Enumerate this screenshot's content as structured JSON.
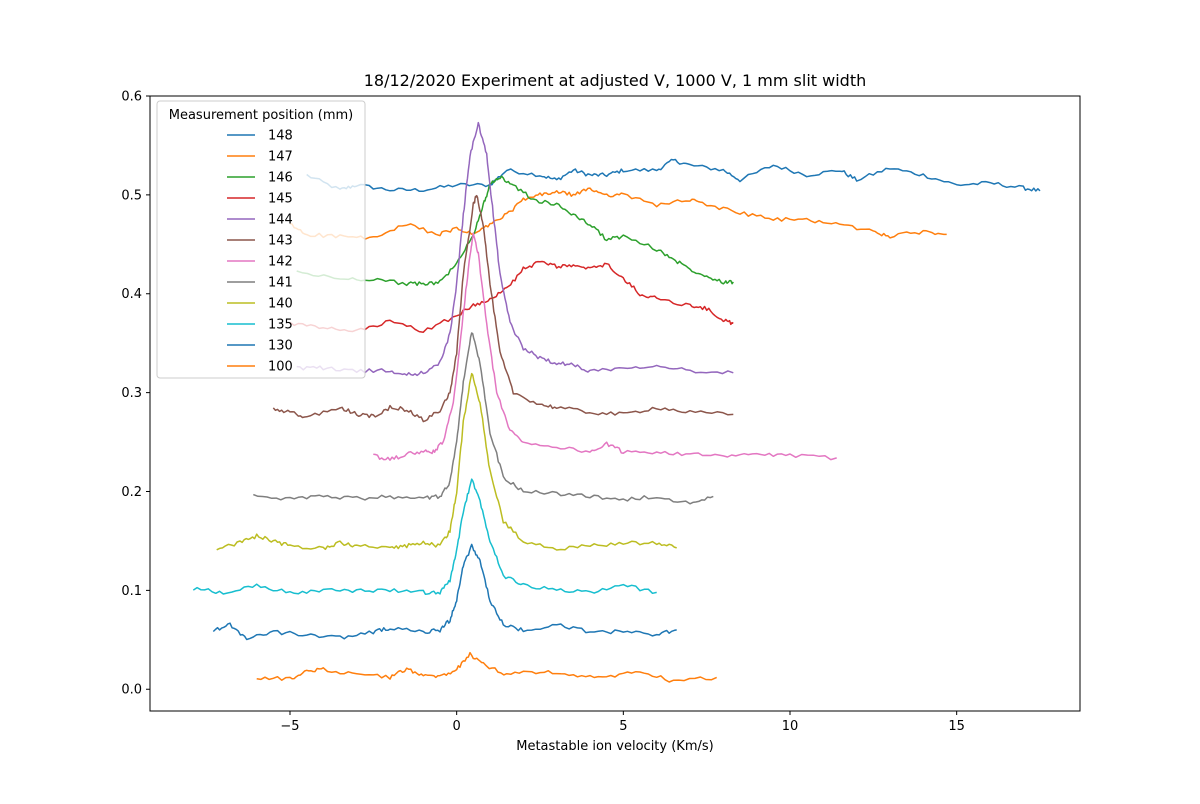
{
  "chart_data": {
    "type": "line",
    "title": "18/12/2020 Experiment at adjusted V, 1000 V, 1 mm slit width",
    "xlabel": "Metastable ion velocity (Km/s)",
    "ylabel": "",
    "xlim": [
      -9.2,
      18.7
    ],
    "ylim": [
      -0.022,
      0.6
    ],
    "x_ticks": [
      -5,
      0,
      5,
      10,
      15
    ],
    "x_tick_labels": [
      "−5",
      "0",
      "5",
      "10",
      "15"
    ],
    "y_ticks": [
      0.0,
      0.1,
      0.2,
      0.3,
      0.4,
      0.5,
      0.6
    ],
    "y_tick_labels": [
      "0.0",
      "0.1",
      "0.2",
      "0.3",
      "0.4",
      "0.5",
      "0.6"
    ],
    "grid": false,
    "legend": {
      "title": "Measurement position (mm)",
      "placement": "upper-left"
    },
    "series": [
      {
        "name": "148",
        "color": "#1f77b4",
        "points": [
          [
            -4.5,
            0.52
          ],
          [
            -3.5,
            0.505
          ],
          [
            -3,
            0.51
          ],
          [
            -2,
            0.505
          ],
          [
            -1,
            0.505
          ],
          [
            0,
            0.51
          ],
          [
            1,
            0.51
          ],
          [
            1.5,
            0.525
          ],
          [
            2.5,
            0.52
          ],
          [
            3,
            0.515
          ],
          [
            3.5,
            0.525
          ],
          [
            4,
            0.52
          ],
          [
            4.5,
            0.52
          ],
          [
            5,
            0.525
          ],
          [
            6,
            0.525
          ],
          [
            6.5,
            0.535
          ],
          [
            7,
            0.53
          ],
          [
            8,
            0.525
          ],
          [
            8.5,
            0.515
          ],
          [
            9.5,
            0.53
          ],
          [
            10.5,
            0.52
          ],
          [
            11.5,
            0.525
          ],
          [
            12,
            0.515
          ],
          [
            13,
            0.527
          ],
          [
            14,
            0.52
          ],
          [
            15,
            0.51
          ],
          [
            16,
            0.512
          ],
          [
            17,
            0.507
          ],
          [
            17.5,
            0.504
          ]
        ]
      },
      {
        "name": "147",
        "color": "#ff7f0e",
        "points": [
          [
            -5,
            0.47
          ],
          [
            -4.5,
            0.46
          ],
          [
            -3.5,
            0.458
          ],
          [
            -2.5,
            0.456
          ],
          [
            -1.5,
            0.47
          ],
          [
            -0.5,
            0.46
          ],
          [
            0,
            0.466
          ],
          [
            0.5,
            0.46
          ],
          [
            1,
            0.47
          ],
          [
            1.5,
            0.48
          ],
          [
            2,
            0.495
          ],
          [
            2.5,
            0.5
          ],
          [
            3,
            0.503
          ],
          [
            3.5,
            0.5
          ],
          [
            4,
            0.506
          ],
          [
            4.5,
            0.5
          ],
          [
            5,
            0.5
          ],
          [
            6,
            0.49
          ],
          [
            7,
            0.495
          ],
          [
            7.5,
            0.49
          ],
          [
            8.5,
            0.482
          ],
          [
            9.5,
            0.475
          ],
          [
            10.5,
            0.475
          ],
          [
            11.5,
            0.47
          ],
          [
            12.5,
            0.463
          ],
          [
            13,
            0.458
          ],
          [
            14,
            0.463
          ],
          [
            14.7,
            0.46
          ]
        ]
      },
      {
        "name": "146",
        "color": "#2ca02c",
        "points": [
          [
            -4.8,
            0.422
          ],
          [
            -3.5,
            0.415
          ],
          [
            -2.5,
            0.415
          ],
          [
            -1.5,
            0.41
          ],
          [
            -1,
            0.41
          ],
          [
            -0.5,
            0.412
          ],
          [
            0,
            0.43
          ],
          [
            0.5,
            0.46
          ],
          [
            0.8,
            0.49
          ],
          [
            1,
            0.51
          ],
          [
            1.3,
            0.518
          ],
          [
            1.7,
            0.51
          ],
          [
            2.3,
            0.495
          ],
          [
            3,
            0.49
          ],
          [
            3.5,
            0.48
          ],
          [
            4,
            0.47
          ],
          [
            4.5,
            0.455
          ],
          [
            5,
            0.458
          ],
          [
            6,
            0.445
          ],
          [
            6.5,
            0.435
          ],
          [
            7,
            0.425
          ],
          [
            7.5,
            0.418
          ],
          [
            8,
            0.412
          ],
          [
            8.3,
            0.412
          ]
        ]
      },
      {
        "name": "145",
        "color": "#d62728",
        "points": [
          [
            -5,
            0.37
          ],
          [
            -4,
            0.365
          ],
          [
            -3,
            0.362
          ],
          [
            -2,
            0.372
          ],
          [
            -1,
            0.362
          ],
          [
            0,
            0.378
          ],
          [
            0.5,
            0.388
          ],
          [
            1,
            0.395
          ],
          [
            1.5,
            0.405
          ],
          [
            2,
            0.425
          ],
          [
            2.5,
            0.432
          ],
          [
            3,
            0.428
          ],
          [
            3.5,
            0.428
          ],
          [
            4,
            0.425
          ],
          [
            4.5,
            0.43
          ],
          [
            5,
            0.415
          ],
          [
            5.5,
            0.4
          ],
          [
            6,
            0.395
          ],
          [
            7,
            0.388
          ],
          [
            7.5,
            0.385
          ],
          [
            8,
            0.373
          ],
          [
            8.3,
            0.37
          ]
        ]
      },
      {
        "name": "144",
        "color": "#9467bd",
        "points": [
          [
            -4.8,
            0.325
          ],
          [
            -4,
            0.325
          ],
          [
            -3,
            0.322
          ],
          [
            -2,
            0.322
          ],
          [
            -1.5,
            0.318
          ],
          [
            -1,
            0.32
          ],
          [
            -0.5,
            0.33
          ],
          [
            -0.2,
            0.36
          ],
          [
            0,
            0.41
          ],
          [
            0.2,
            0.48
          ],
          [
            0.4,
            0.54
          ],
          [
            0.65,
            0.572
          ],
          [
            0.9,
            0.54
          ],
          [
            1.1,
            0.48
          ],
          [
            1.3,
            0.42
          ],
          [
            1.6,
            0.37
          ],
          [
            2,
            0.345
          ],
          [
            2.5,
            0.335
          ],
          [
            3,
            0.33
          ],
          [
            3.5,
            0.328
          ],
          [
            4,
            0.322
          ],
          [
            5,
            0.325
          ],
          [
            6,
            0.328
          ],
          [
            7,
            0.322
          ],
          [
            8.3,
            0.32
          ]
        ]
      },
      {
        "name": "143",
        "color": "#8c564b",
        "points": [
          [
            -5.5,
            0.283
          ],
          [
            -5,
            0.28
          ],
          [
            -4.5,
            0.275
          ],
          [
            -3.5,
            0.285
          ],
          [
            -3,
            0.278
          ],
          [
            -2.5,
            0.276
          ],
          [
            -2,
            0.285
          ],
          [
            -1.5,
            0.283
          ],
          [
            -1,
            0.272
          ],
          [
            -0.5,
            0.282
          ],
          [
            -0.2,
            0.3
          ],
          [
            0,
            0.34
          ],
          [
            0.2,
            0.42
          ],
          [
            0.5,
            0.49
          ],
          [
            0.6,
            0.5
          ],
          [
            0.8,
            0.47
          ],
          [
            1,
            0.41
          ],
          [
            1.3,
            0.34
          ],
          [
            1.7,
            0.3
          ],
          [
            2.5,
            0.288
          ],
          [
            3,
            0.285
          ],
          [
            4,
            0.28
          ],
          [
            5,
            0.278
          ],
          [
            6,
            0.285
          ],
          [
            7,
            0.28
          ],
          [
            8.3,
            0.278
          ]
        ]
      },
      {
        "name": "142",
        "color": "#e377c2",
        "points": [
          [
            -2.5,
            0.236
          ],
          [
            -2,
            0.232
          ],
          [
            -1.5,
            0.238
          ],
          [
            -1,
            0.24
          ],
          [
            -0.7,
            0.24
          ],
          [
            -0.4,
            0.25
          ],
          [
            -0.1,
            0.29
          ],
          [
            0.2,
            0.38
          ],
          [
            0.4,
            0.44
          ],
          [
            0.5,
            0.46
          ],
          [
            0.65,
            0.44
          ],
          [
            0.9,
            0.37
          ],
          [
            1.2,
            0.3
          ],
          [
            1.6,
            0.262
          ],
          [
            2,
            0.25
          ],
          [
            3,
            0.245
          ],
          [
            4,
            0.24
          ],
          [
            4.5,
            0.248
          ],
          [
            5,
            0.24
          ],
          [
            6,
            0.24
          ],
          [
            7,
            0.238
          ],
          [
            8,
            0.235
          ],
          [
            9,
            0.238
          ],
          [
            10,
            0.236
          ],
          [
            11.4,
            0.234
          ]
        ]
      },
      {
        "name": "141",
        "color": "#7f7f7f",
        "points": [
          [
            -6.1,
            0.195
          ],
          [
            -5,
            0.193
          ],
          [
            -4,
            0.195
          ],
          [
            -3,
            0.193
          ],
          [
            -2,
            0.195
          ],
          [
            -1,
            0.193
          ],
          [
            -0.5,
            0.195
          ],
          [
            -0.2,
            0.21
          ],
          [
            0,
            0.25
          ],
          [
            0.2,
            0.31
          ],
          [
            0.45,
            0.362
          ],
          [
            0.7,
            0.33
          ],
          [
            1,
            0.26
          ],
          [
            1.4,
            0.215
          ],
          [
            2,
            0.2
          ],
          [
            3,
            0.198
          ],
          [
            4,
            0.195
          ],
          [
            5,
            0.192
          ],
          [
            6,
            0.195
          ],
          [
            7,
            0.188
          ],
          [
            7.7,
            0.195
          ]
        ]
      },
      {
        "name": "140",
        "color": "#bcbd22",
        "points": [
          [
            -7.2,
            0.143
          ],
          [
            -6.5,
            0.148
          ],
          [
            -6,
            0.155
          ],
          [
            -5.5,
            0.15
          ],
          [
            -5,
            0.145
          ],
          [
            -4,
            0.142
          ],
          [
            -3.5,
            0.148
          ],
          [
            -3,
            0.145
          ],
          [
            -2,
            0.142
          ],
          [
            -1.5,
            0.145
          ],
          [
            -1,
            0.148
          ],
          [
            -0.5,
            0.145
          ],
          [
            -0.2,
            0.16
          ],
          [
            0,
            0.2
          ],
          [
            0.2,
            0.27
          ],
          [
            0.45,
            0.32
          ],
          [
            0.7,
            0.29
          ],
          [
            1,
            0.22
          ],
          [
            1.4,
            0.17
          ],
          [
            2,
            0.15
          ],
          [
            3,
            0.142
          ],
          [
            4,
            0.145
          ],
          [
            5,
            0.148
          ],
          [
            6,
            0.148
          ],
          [
            6.6,
            0.143
          ]
        ]
      },
      {
        "name": "135",
        "color": "#17becf",
        "points": [
          [
            -7.9,
            0.102
          ],
          [
            -7,
            0.098
          ],
          [
            -6,
            0.105
          ],
          [
            -5,
            0.098
          ],
          [
            -4,
            0.1
          ],
          [
            -3,
            0.1
          ],
          [
            -2,
            0.1
          ],
          [
            -1,
            0.098
          ],
          [
            -0.5,
            0.098
          ],
          [
            -0.2,
            0.11
          ],
          [
            0,
            0.14
          ],
          [
            0.2,
            0.18
          ],
          [
            0.45,
            0.212
          ],
          [
            0.7,
            0.19
          ],
          [
            1,
            0.15
          ],
          [
            1.4,
            0.115
          ],
          [
            2,
            0.105
          ],
          [
            3,
            0.1
          ],
          [
            4,
            0.098
          ],
          [
            5,
            0.105
          ],
          [
            6,
            0.098
          ]
        ]
      },
      {
        "name": "130",
        "color": "#1f77b4",
        "points": [
          [
            -7.3,
            0.06
          ],
          [
            -6.8,
            0.065
          ],
          [
            -6.3,
            0.052
          ],
          [
            -5.5,
            0.058
          ],
          [
            -4.5,
            0.055
          ],
          [
            -3.5,
            0.052
          ],
          [
            -2.5,
            0.058
          ],
          [
            -2,
            0.062
          ],
          [
            -1,
            0.058
          ],
          [
            -0.5,
            0.06
          ],
          [
            -0.2,
            0.07
          ],
          [
            0,
            0.09
          ],
          [
            0.2,
            0.125
          ],
          [
            0.45,
            0.145
          ],
          [
            0.7,
            0.13
          ],
          [
            1,
            0.09
          ],
          [
            1.4,
            0.065
          ],
          [
            2,
            0.06
          ],
          [
            3,
            0.065
          ],
          [
            4,
            0.058
          ],
          [
            5,
            0.058
          ],
          [
            6,
            0.055
          ],
          [
            6.6,
            0.06
          ]
        ]
      },
      {
        "name": "100",
        "color": "#ff7f0e",
        "points": [
          [
            -6,
            0.012
          ],
          [
            -5,
            0.01
          ],
          [
            -4.5,
            0.018
          ],
          [
            -4,
            0.02
          ],
          [
            -3,
            0.015
          ],
          [
            -2,
            0.012
          ],
          [
            -1.5,
            0.02
          ],
          [
            -1,
            0.015
          ],
          [
            -0.5,
            0.012
          ],
          [
            0,
            0.02
          ],
          [
            0.4,
            0.035
          ],
          [
            0.8,
            0.025
          ],
          [
            1.5,
            0.015
          ],
          [
            2.5,
            0.018
          ],
          [
            3.5,
            0.015
          ],
          [
            4.5,
            0.012
          ],
          [
            5.5,
            0.018
          ],
          [
            6.5,
            0.008
          ],
          [
            7.8,
            0.012
          ]
        ]
      }
    ]
  }
}
